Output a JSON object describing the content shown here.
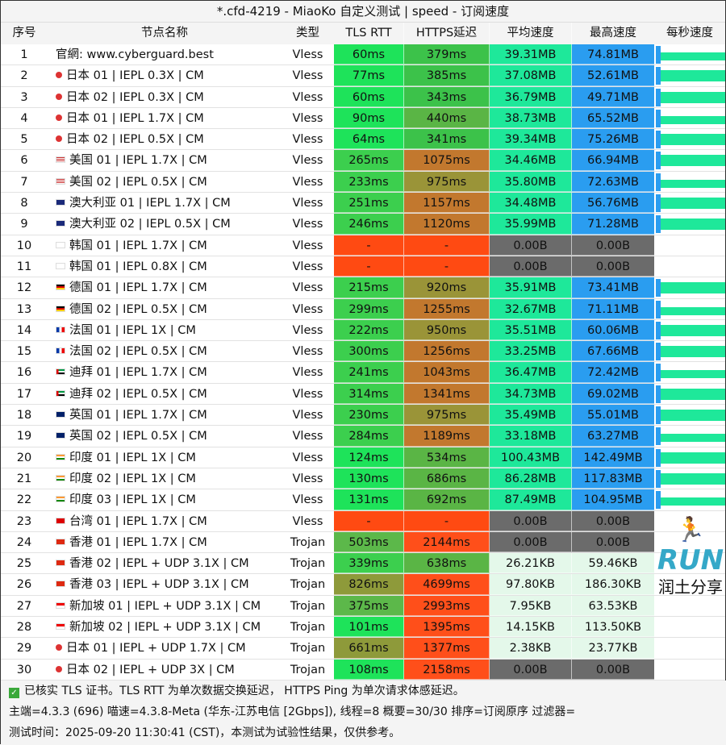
{
  "window_title": "*.cfd-4219 - MiaoKo 自定义测试 | speed - 订阅速度",
  "columns": [
    "序号",
    "节点名称",
    "类型",
    "TLS RTT",
    "HTTPS延迟",
    "平均速度",
    "最高速度",
    "每秒速度"
  ],
  "palette": {
    "tls_fast": "#1ee35a",
    "tls_mid": "#3ccf4e",
    "tls_slow": "#5cb84a",
    "tls_vslow": "#8e9a3a",
    "fail": "#ff4a12",
    "https_fast": "#3cc24a",
    "https_mid": "#5ab545",
    "https_slow": "#9a9438",
    "https_vslow": "#c2782e",
    "https_bad": "#ff4f1a",
    "avg_mb": "#1ee89a",
    "max_mb": "#2a9df0",
    "kb": "#e4f8ea",
    "zero": "#6b6b6b"
  },
  "rows": [
    {
      "n": "1",
      "flag": "",
      "name": "官網: www.cyberguard.best",
      "type": "Vless",
      "tls": "60ms",
      "https": "379ms",
      "avg": "39.31MB",
      "max": "74.81MB"
    },
    {
      "n": "2",
      "flag": "jp",
      "name": "日本 01 | IEPL 0.3X | CM",
      "type": "Vless",
      "tls": "77ms",
      "https": "385ms",
      "avg": "37.08MB",
      "max": "52.61MB"
    },
    {
      "n": "3",
      "flag": "jp",
      "name": "日本 02 | IEPL 0.3X | CM",
      "type": "Vless",
      "tls": "60ms",
      "https": "343ms",
      "avg": "36.79MB",
      "max": "49.71MB"
    },
    {
      "n": "4",
      "flag": "jp",
      "name": "日本 01 | IEPL 1.7X | CM",
      "type": "Vless",
      "tls": "90ms",
      "https": "440ms",
      "avg": "38.73MB",
      "max": "65.52MB"
    },
    {
      "n": "5",
      "flag": "jp",
      "name": "日本 02 | IEPL 0.5X | CM",
      "type": "Vless",
      "tls": "64ms",
      "https": "341ms",
      "avg": "39.34MB",
      "max": "75.26MB"
    },
    {
      "n": "6",
      "flag": "us",
      "name": "美国 01 | IEPL 1.7X | CM",
      "type": "Vless",
      "tls": "265ms",
      "https": "1075ms",
      "avg": "34.46MB",
      "max": "66.94MB"
    },
    {
      "n": "7",
      "flag": "us",
      "name": "美国 02 | IEPL 0.5X | CM",
      "type": "Vless",
      "tls": "233ms",
      "https": "975ms",
      "avg": "35.80MB",
      "max": "72.63MB"
    },
    {
      "n": "8",
      "flag": "au",
      "name": "澳大利亚 01 | IEPL 1.7X | CM",
      "type": "Vless",
      "tls": "251ms",
      "https": "1157ms",
      "avg": "34.48MB",
      "max": "56.76MB"
    },
    {
      "n": "9",
      "flag": "au",
      "name": "澳大利亚 02 | IEPL 0.5X | CM",
      "type": "Vless",
      "tls": "246ms",
      "https": "1120ms",
      "avg": "35.99MB",
      "max": "71.28MB"
    },
    {
      "n": "10",
      "flag": "kr",
      "name": "韩国 01 | IEPL 1.7X | CM",
      "type": "Vless",
      "tls": "-",
      "https": "-",
      "avg": "0.00B",
      "max": "0.00B"
    },
    {
      "n": "11",
      "flag": "kr",
      "name": "韩国 01 | IEPL 0.8X | CM",
      "type": "Vless",
      "tls": "-",
      "https": "-",
      "avg": "0.00B",
      "max": "0.00B"
    },
    {
      "n": "12",
      "flag": "de",
      "name": "德国 01 | IEPL 1.7X | CM",
      "type": "Vless",
      "tls": "215ms",
      "https": "920ms",
      "avg": "35.91MB",
      "max": "73.41MB"
    },
    {
      "n": "13",
      "flag": "de",
      "name": "德国 02 | IEPL 0.5X | CM",
      "type": "Vless",
      "tls": "299ms",
      "https": "1255ms",
      "avg": "32.67MB",
      "max": "71.11MB"
    },
    {
      "n": "14",
      "flag": "fr",
      "name": "法国 01 | IEPL 1X | CM",
      "type": "Vless",
      "tls": "222ms",
      "https": "950ms",
      "avg": "35.51MB",
      "max": "60.06MB"
    },
    {
      "n": "15",
      "flag": "fr",
      "name": "法国 02 | IEPL 0.5X | CM",
      "type": "Vless",
      "tls": "300ms",
      "https": "1256ms",
      "avg": "33.25MB",
      "max": "67.66MB"
    },
    {
      "n": "16",
      "flag": "ae",
      "name": "迪拜 01 | IEPL 1.7X | CM",
      "type": "Vless",
      "tls": "241ms",
      "https": "1043ms",
      "avg": "36.47MB",
      "max": "72.42MB"
    },
    {
      "n": "17",
      "flag": "ae",
      "name": "迪拜 02 | IEPL 0.5X | CM",
      "type": "Vless",
      "tls": "314ms",
      "https": "1341ms",
      "avg": "34.73MB",
      "max": "69.02MB"
    },
    {
      "n": "18",
      "flag": "gb",
      "name": "英国 01 | IEPL 1.7X | CM",
      "type": "Vless",
      "tls": "230ms",
      "https": "975ms",
      "avg": "35.49MB",
      "max": "55.01MB"
    },
    {
      "n": "19",
      "flag": "gb",
      "name": "英国 02 | IEPL 0.5X | CM",
      "type": "Vless",
      "tls": "284ms",
      "https": "1189ms",
      "avg": "33.18MB",
      "max": "63.27MB"
    },
    {
      "n": "20",
      "flag": "in",
      "name": "印度 01 | IEPL 1X | CM",
      "type": "Vless",
      "tls": "124ms",
      "https": "534ms",
      "avg": "100.43MB",
      "max": "142.49MB"
    },
    {
      "n": "21",
      "flag": "in",
      "name": "印度 02 | IEPL 1X | CM",
      "type": "Vless",
      "tls": "130ms",
      "https": "686ms",
      "avg": "86.28MB",
      "max": "117.83MB"
    },
    {
      "n": "22",
      "flag": "in",
      "name": "印度 03 | IEPL 1X | CM",
      "type": "Vless",
      "tls": "131ms",
      "https": "692ms",
      "avg": "87.49MB",
      "max": "104.95MB"
    },
    {
      "n": "23",
      "flag": "tw",
      "name": "台湾 01 | IEPL 1.7X | CM",
      "type": "Vless",
      "tls": "-",
      "https": "-",
      "avg": "0.00B",
      "max": "0.00B"
    },
    {
      "n": "24",
      "flag": "hk",
      "name": "香港 01 | IEPL 1.7X | CM",
      "type": "Trojan",
      "tls": "503ms",
      "https": "2144ms",
      "avg": "0.00B",
      "max": "0.00B"
    },
    {
      "n": "25",
      "flag": "hk",
      "name": "香港 02 | IEPL + UDP 3.1X | CM",
      "type": "Trojan",
      "tls": "339ms",
      "https": "638ms",
      "avg": "26.21KB",
      "max": "59.46KB"
    },
    {
      "n": "26",
      "flag": "hk",
      "name": "香港 03 | IEPL + UDP 3.1X | CM",
      "type": "Trojan",
      "tls": "826ms",
      "https": "4699ms",
      "avg": "97.80KB",
      "max": "186.30KB"
    },
    {
      "n": "27",
      "flag": "sg",
      "name": "新加坡 01 | IEPL + UDP 3.1X | CM",
      "type": "Trojan",
      "tls": "375ms",
      "https": "2993ms",
      "avg": "7.95KB",
      "max": "63.53KB"
    },
    {
      "n": "28",
      "flag": "sg",
      "name": "新加坡 02 | IEPL + UDP 3.1X | CM",
      "type": "Trojan",
      "tls": "101ms",
      "https": "1395ms",
      "avg": "14.15KB",
      "max": "113.50KB"
    },
    {
      "n": "29",
      "flag": "jp",
      "name": "日本 01 | IEPL + UDP 1.7X | CM",
      "type": "Trojan",
      "tls": "661ms",
      "https": "1377ms",
      "avg": "2.38KB",
      "max": "23.77KB"
    },
    {
      "n": "30",
      "flag": "jp",
      "name": "日本 02 | IEPL + UDP 3X | CM",
      "type": "Trojan",
      "tls": "108ms",
      "https": "2158ms",
      "avg": "0.00B",
      "max": "0.00B"
    }
  ],
  "footer": {
    "line1": "已核实 TLS 证书。TLS RTT 为单次数据交换延迟， HTTPS Ping 为单次请求体感延迟。",
    "line2": "主端=4.3.3 (696) 喵速=4.3.8-Meta (华东-江苏电信 [2Gbps]), 线程=8 概要=30/30 排序=订阅原序 过滤器=",
    "line3": "测试时间：2025-09-20 11:30:41 (CST)，本测试为试验性结果，仅供参考。"
  },
  "logo": {
    "text": "RUN",
    "subtitle": "润土分享"
  }
}
